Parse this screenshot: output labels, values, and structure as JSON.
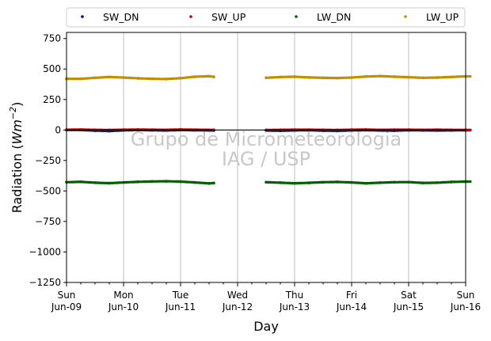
{
  "chart_data": {
    "type": "scatter",
    "xlabel": "Day",
    "ylabel": "Radiation (Wm⁻²)",
    "ylabel_parts": {
      "pre": "Radiation (",
      "main": "Wm",
      "sup": "−2",
      "post": ")"
    },
    "ylim": [
      -1250,
      800
    ],
    "yticks": [
      -1250,
      -1000,
      -750,
      -500,
      -250,
      0,
      250,
      500,
      750
    ],
    "ytick_labels": [
      "−1250",
      "−1000",
      "−750",
      "−500",
      "−250",
      "0",
      "250",
      "500",
      "750"
    ],
    "xlim": [
      "2013-06-09",
      "2013-06-16"
    ],
    "xticks": [
      {
        "day": "Sun",
        "date": "Jun-09"
      },
      {
        "day": "Mon",
        "date": "Jun-10"
      },
      {
        "day": "Tue",
        "date": "Jun-11"
      },
      {
        "day": "Wed",
        "date": "Jun-12"
      },
      {
        "day": "Thu",
        "date": "Jun-13"
      },
      {
        "day": "Fri",
        "date": "Jun-14"
      },
      {
        "day": "Sat",
        "date": "Jun-15"
      },
      {
        "day": "Sun",
        "date": "Jun-16"
      }
    ],
    "grid": "vertical",
    "zero_line": true,
    "legend": "top",
    "watermark": [
      "Grupo de Micrometeorologia",
      "IAG / USP"
    ],
    "series": [
      {
        "name": "SW_DN",
        "color": "#00007f",
        "x_hours": [
          0,
          6,
          12,
          18,
          24,
          30,
          36,
          42,
          48,
          54,
          60,
          62,
          84,
          90,
          96,
          102,
          108,
          114,
          120,
          126,
          132,
          138,
          144,
          150,
          156,
          162,
          168
        ],
        "values": [
          0,
          0,
          -5,
          -8,
          -3,
          0,
          -2,
          -4,
          0,
          -2,
          -3,
          -4,
          -4,
          -6,
          -3,
          -2,
          -5,
          -7,
          -3,
          -1,
          -4,
          -5,
          -2,
          -3,
          -4,
          -3,
          -2
        ]
      },
      {
        "name": "SW_UP",
        "color": "#c00000",
        "x_hours": [
          0,
          6,
          12,
          18,
          24,
          30,
          36,
          42,
          48,
          54,
          60,
          62,
          84,
          90,
          96,
          102,
          108,
          114,
          120,
          126,
          132,
          138,
          144,
          150,
          156,
          162,
          168
        ],
        "values": [
          2,
          3,
          1,
          0,
          2,
          3,
          2,
          1,
          4,
          2,
          1,
          1,
          0,
          1,
          2,
          2,
          1,
          0,
          2,
          3,
          1,
          2,
          2,
          1,
          2,
          1,
          1
        ]
      },
      {
        "name": "LW_DN",
        "color": "#006000",
        "x_hours": [
          0,
          6,
          12,
          18,
          24,
          30,
          36,
          42,
          48,
          54,
          60,
          62,
          84,
          90,
          96,
          102,
          108,
          114,
          120,
          126,
          132,
          138,
          144,
          150,
          156,
          162,
          168
        ],
        "values": [
          -428,
          -425,
          -432,
          -436,
          -430,
          -425,
          -422,
          -420,
          -423,
          -430,
          -438,
          -435,
          -428,
          -432,
          -437,
          -433,
          -428,
          -426,
          -430,
          -437,
          -432,
          -428,
          -427,
          -434,
          -432,
          -426,
          -423
        ]
      },
      {
        "name": "LW_UP",
        "color": "#c09000",
        "x_hours": [
          0,
          6,
          12,
          18,
          24,
          30,
          36,
          42,
          48,
          54,
          60,
          62,
          84,
          90,
          96,
          102,
          108,
          114,
          120,
          126,
          132,
          138,
          144,
          150,
          156,
          162,
          168
        ],
        "values": [
          420,
          420,
          428,
          435,
          430,
          424,
          420,
          418,
          425,
          437,
          441,
          436,
          428,
          434,
          437,
          431,
          428,
          426,
          430,
          438,
          442,
          437,
          433,
          428,
          430,
          435,
          440
        ]
      }
    ],
    "segments": [
      [
        0,
        62
      ],
      [
        84,
        170
      ]
    ]
  }
}
